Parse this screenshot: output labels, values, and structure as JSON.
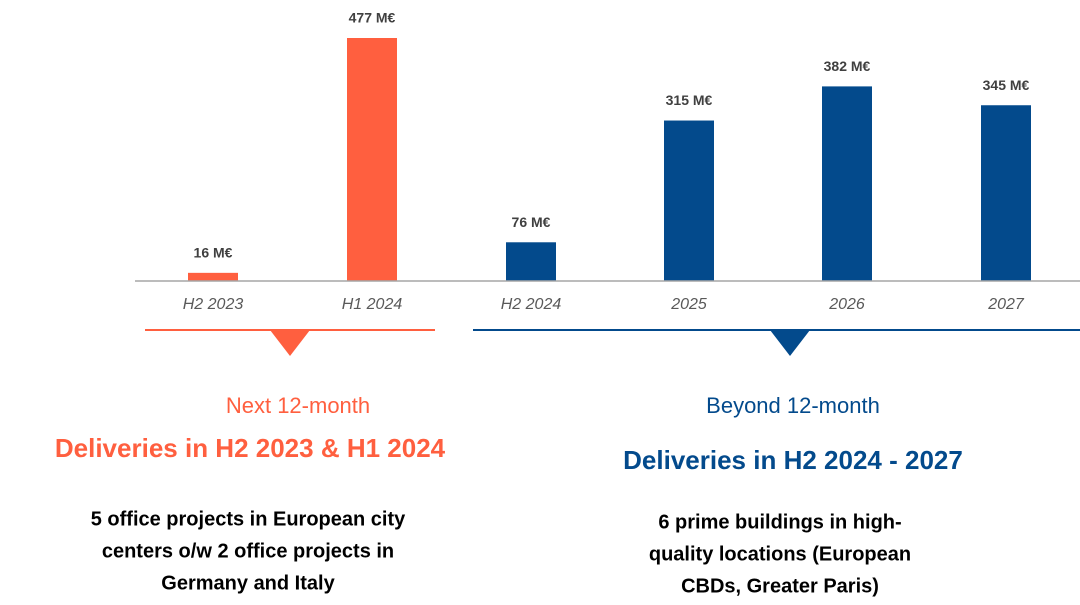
{
  "chart_data": {
    "type": "bar",
    "categories": [
      "H2 2023",
      "H1 2024",
      "H2 2024",
      "2025",
      "2026",
      "2027"
    ],
    "values": [
      16,
      477,
      76,
      315,
      382,
      345
    ],
    "value_labels": [
      "16 M€",
      "477 M€",
      "76 M€",
      "315 M€",
      "382 M€",
      "345 M€"
    ],
    "colors": [
      "#ff5f3f",
      "#ff5f3f",
      "#034a8c",
      "#034a8c",
      "#034a8c",
      "#034a8c"
    ],
    "groups": [
      {
        "subtitle": "Next 12-month",
        "title": "Deliveries in H2 2023 & H1 2024",
        "color": "#ff5f3f",
        "description": [
          "5 office projects in European city",
          "centers o/w 2 office projects in",
          "Germany and Italy"
        ]
      },
      {
        "subtitle": "Beyond 12-month",
        "title": "Deliveries in H2 2024 - 2027",
        "color": "#034a8c",
        "description": [
          "6 prime buildings in high-",
          "quality locations (European",
          "CBDs, Greater Paris)"
        ]
      }
    ]
  }
}
